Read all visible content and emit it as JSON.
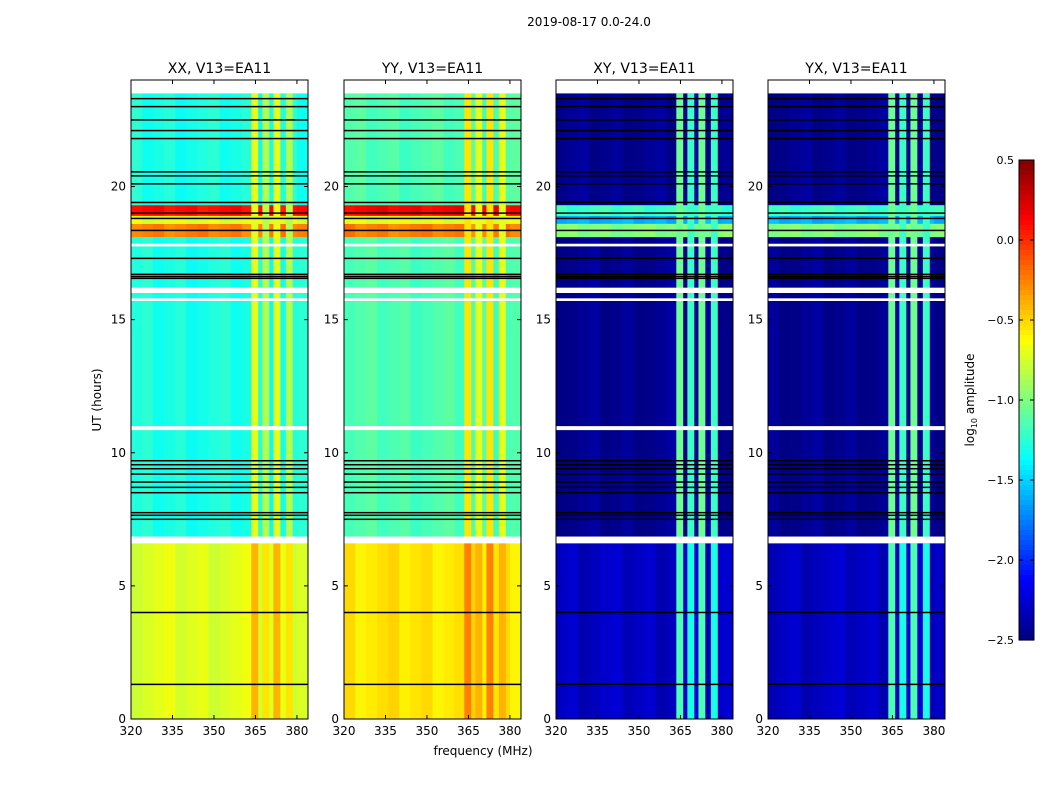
{
  "chart_data": {
    "type": "heatmap",
    "title": "2019-08-17 0.0-24.0",
    "xlabel": "frequency (MHz)",
    "ylabel": "UT (hours)",
    "xlim": [
      320,
      384
    ],
    "ylim": [
      0,
      24
    ],
    "xticks": [
      "320",
      "335",
      "350",
      "365",
      "380"
    ],
    "xtick_values": [
      320,
      335,
      350,
      365,
      380
    ],
    "yticks": [
      "0",
      "5",
      "10",
      "15",
      "20"
    ],
    "ytick_values": [
      0,
      5,
      10,
      15,
      20
    ],
    "colormap": "jet",
    "colorbar": {
      "label_main": "log",
      "label_sub": "10",
      "label_rest": " amplitude",
      "range": [
        -2.5,
        0.5
      ],
      "ticks": [
        "0.5",
        "0.0",
        "−0.5",
        "−1.0",
        "−1.5",
        "−2.0",
        "−2.5"
      ],
      "tick_values": [
        0.5,
        0.0,
        -0.5,
        -1.0,
        -1.5,
        -2.0,
        -2.5
      ]
    },
    "flagged_white_hours": [
      [
        6.6,
        6.85
      ],
      [
        10.85,
        11.0
      ],
      [
        15.7,
        15.8
      ],
      [
        16.0,
        16.2
      ],
      [
        17.75,
        17.85
      ],
      [
        23.5,
        24.0
      ]
    ],
    "black_line_hours": [
      1.3,
      4.0,
      7.5,
      7.65,
      7.75,
      8.5,
      8.7,
      8.9,
      9.2,
      9.4,
      9.55,
      9.7,
      16.55,
      16.62,
      16.7,
      17.3,
      18.35,
      18.8,
      19.0,
      19.4,
      20.1,
      20.4,
      20.55,
      21.8,
      22.1,
      22.5,
      23.0,
      23.3
    ],
    "rfi_channels_mhz": [
      [
        363.5,
        366
      ],
      [
        367.5,
        370
      ],
      [
        371.5,
        374
      ],
      [
        376,
        378.5
      ]
    ],
    "panels": [
      {
        "title": "XX, V13=EA11",
        "bands": [
          [
            0,
            6.6,
            -0.72
          ],
          [
            6.85,
            18.1,
            -1.3
          ],
          [
            18.1,
            18.6,
            -0.25
          ],
          [
            18.6,
            18.9,
            -0.7
          ],
          [
            18.9,
            19.3,
            0.1
          ],
          [
            19.3,
            23.5,
            -1.3
          ]
        ],
        "rfi_levels": [
          [
            0,
            6.6,
            -0.45
          ],
          [
            6.85,
            24,
            -0.75
          ]
        ]
      },
      {
        "title": "YY, V13=EA11",
        "bands": [
          [
            0,
            6.6,
            -0.55
          ],
          [
            6.85,
            18.1,
            -1.15
          ],
          [
            18.1,
            18.6,
            -0.25
          ],
          [
            18.6,
            18.9,
            -0.7
          ],
          [
            18.9,
            19.3,
            0.15
          ],
          [
            19.3,
            23.5,
            -1.15
          ]
        ],
        "rfi_levels": [
          [
            0,
            6.6,
            -0.3
          ],
          [
            6.85,
            24,
            -0.6
          ]
        ]
      },
      {
        "title": "XY, V13=EA11",
        "bands": [
          [
            0,
            6.6,
            -2.3
          ],
          [
            6.85,
            18.1,
            -2.45
          ],
          [
            18.1,
            18.6,
            -1.0
          ],
          [
            18.6,
            18.9,
            -1.6
          ],
          [
            18.9,
            19.3,
            -1.2
          ],
          [
            19.3,
            23.5,
            -2.45
          ]
        ],
        "rfi_levels": [
          [
            0,
            6.6,
            -1.2
          ],
          [
            6.85,
            24,
            -1.1
          ]
        ]
      },
      {
        "title": "YX, V13=EA11",
        "bands": [
          [
            0,
            6.6,
            -2.3
          ],
          [
            6.85,
            18.1,
            -2.45
          ],
          [
            18.1,
            18.6,
            -1.0
          ],
          [
            18.6,
            18.9,
            -1.6
          ],
          [
            18.9,
            19.3,
            -1.2
          ],
          [
            19.3,
            23.5,
            -2.45
          ]
        ],
        "rfi_levels": [
          [
            0,
            6.6,
            -1.2
          ],
          [
            6.85,
            24,
            -1.1
          ]
        ]
      }
    ]
  }
}
